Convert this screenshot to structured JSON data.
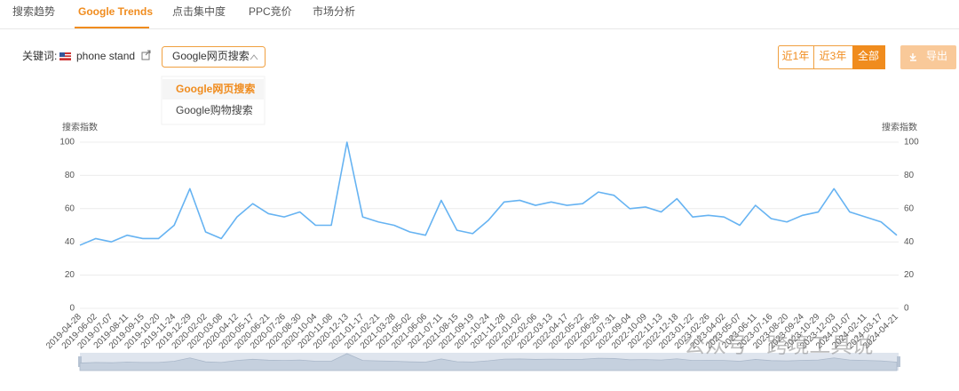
{
  "tabs": [
    "搜索趋势",
    "Google Trends",
    "点击集中度",
    "PPC竞价",
    "市场分析"
  ],
  "keyword": {
    "label": "关键词:",
    "value": "phone stand"
  },
  "dropdown": {
    "selected": "Google网页搜索",
    "options": [
      "Google网页搜索",
      "Google购物搜索"
    ]
  },
  "range_buttons": [
    "近1年",
    "近3年",
    "全部"
  ],
  "export_button": "导出",
  "watermark": "公众号 · 跨境工具说",
  "chart_data": {
    "type": "line",
    "y_label": "搜索指数",
    "y2_label": "搜索指数",
    "categories": [
      "2019-04-28",
      "2019-06-02",
      "2019-07-07",
      "2019-08-11",
      "2019-09-15",
      "2019-10-20",
      "2019-11-24",
      "2019-12-29",
      "2020-02-02",
      "2020-03-08",
      "2020-04-12",
      "2020-05-17",
      "2020-06-21",
      "2020-07-26",
      "2020-08-30",
      "2020-10-04",
      "2020-11-08",
      "2020-12-13",
      "2021-01-17",
      "2021-02-21",
      "2021-03-28",
      "2021-05-02",
      "2021-06-06",
      "2021-07-11",
      "2021-08-15",
      "2021-09-19",
      "2021-10-24",
      "2021-11-28",
      "2022-01-02",
      "2022-02-06",
      "2022-03-13",
      "2022-04-17",
      "2022-05-22",
      "2022-06-26",
      "2022-07-31",
      "2022-09-04",
      "2022-10-09",
      "2022-11-13",
      "2022-12-18",
      "2023-01-22",
      "2023-02-26",
      "2023-04-02",
      "2023-05-07",
      "2023-06-11",
      "2023-07-16",
      "2023-08-20",
      "2023-09-24",
      "2023-10-29",
      "2023-12-03",
      "2024-01-07",
      "2024-02-11",
      "2024-03-17",
      "2024-04-21"
    ],
    "series": [
      {
        "name": "phone stand",
        "color": "#66b3f2",
        "values": [
          38,
          42,
          40,
          44,
          42,
          42,
          50,
          72,
          46,
          42,
          55,
          63,
          57,
          55,
          58,
          50,
          50,
          100,
          55,
          52,
          50,
          46,
          44,
          65,
          47,
          45,
          53,
          64,
          65,
          62,
          64,
          62,
          63,
          70,
          68,
          60,
          61,
          58,
          66,
          55,
          56,
          55,
          50,
          62,
          54,
          52,
          56,
          58,
          72,
          58,
          55,
          52,
          44
        ]
      }
    ],
    "ylim": [
      0,
      100
    ],
    "yticks": [
      0,
      20,
      40,
      60,
      80,
      100
    ],
    "y2lim": [
      0,
      100
    ],
    "y2ticks": [
      0,
      20,
      40,
      60,
      80,
      100
    ],
    "grid": true
  }
}
